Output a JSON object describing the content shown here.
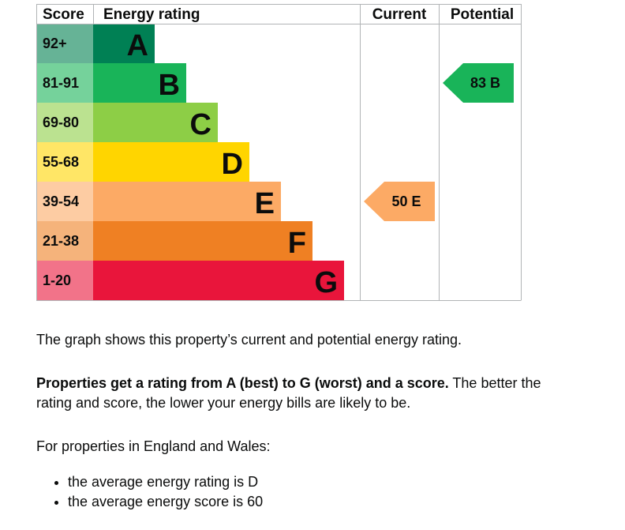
{
  "headers": {
    "score": "Score",
    "rating": "Energy rating",
    "current": "Current",
    "potential": "Potential"
  },
  "chart_data": {
    "type": "bar",
    "title": "",
    "bands": [
      {
        "score": "92+",
        "letter": "A",
        "color": "#008054",
        "score_bg": "#66b396"
      },
      {
        "score": "81-91",
        "letter": "B",
        "color": "#19b459",
        "score_bg": "#75d29b"
      },
      {
        "score": "69-80",
        "letter": "C",
        "color": "#8dce46",
        "score_bg": "#bbe290"
      },
      {
        "score": "55-68",
        "letter": "D",
        "color": "#ffd500",
        "score_bg": "#ffe666"
      },
      {
        "score": "39-54",
        "letter": "E",
        "color": "#fcaa65",
        "score_bg": "#fdcca3"
      },
      {
        "score": "21-38",
        "letter": "F",
        "color": "#ef8023",
        "score_bg": "#f5b37b"
      },
      {
        "score": "1-20",
        "letter": "G",
        "color": "#e9153b",
        "score_bg": "#f27389"
      }
    ],
    "current": {
      "score": 50,
      "letter": "E",
      "label": "50 E",
      "color": "#fcaa65"
    },
    "potential": {
      "score": 83,
      "letter": "B",
      "label": "83 B",
      "color": "#19b459"
    }
  },
  "text": {
    "p1": "The graph shows this property’s current and potential energy rating.",
    "p2_bold": "Properties get a rating from A (best) to G (worst) and a score.",
    "p2_rest": " The better the rating and score, the lower your energy bills are likely to be.",
    "p3": "For properties in England and Wales:",
    "bullets": [
      "the average energy rating is D",
      "the average energy score is 60"
    ]
  }
}
